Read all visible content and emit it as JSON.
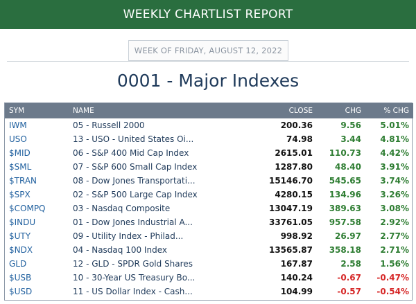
{
  "header": {
    "banner_title": "WEEKLY CHARTLIST REPORT",
    "week_label": "WEEK OF FRIDAY, AUGUST 12, 2022"
  },
  "list": {
    "title": "0001 - Major Indexes"
  },
  "table": {
    "columns": {
      "sym": "SYM",
      "name": "NAME",
      "close": "CLOSE",
      "chg": "CHG",
      "pct": "% CHG"
    },
    "rows": [
      {
        "sym": "IWM",
        "name": "05 - Russell 2000",
        "close": "200.36",
        "chg": "9.56",
        "pct": "5.01%",
        "dir": "pos"
      },
      {
        "sym": "USO",
        "name": "13 - USO - United States Oi...",
        "close": "74.98",
        "chg": "3.44",
        "pct": "4.81%",
        "dir": "pos"
      },
      {
        "sym": "$MID",
        "name": "06 - S&P 400 Mid Cap Index",
        "close": "2615.01",
        "chg": "110.73",
        "pct": "4.42%",
        "dir": "pos"
      },
      {
        "sym": "$SML",
        "name": "07 - S&P 600 Small Cap Index",
        "close": "1287.80",
        "chg": "48.40",
        "pct": "3.91%",
        "dir": "pos"
      },
      {
        "sym": "$TRAN",
        "name": "08 - Dow Jones Transportati...",
        "close": "15146.70",
        "chg": "545.65",
        "pct": "3.74%",
        "dir": "pos"
      },
      {
        "sym": "$SPX",
        "name": "02 - S&P 500 Large Cap Index",
        "close": "4280.15",
        "chg": "134.96",
        "pct": "3.26%",
        "dir": "pos"
      },
      {
        "sym": "$COMPQ",
        "name": "03 - Nasdaq Composite",
        "close": "13047.19",
        "chg": "389.63",
        "pct": "3.08%",
        "dir": "pos"
      },
      {
        "sym": "$INDU",
        "name": "01 - Dow Jones Industrial A...",
        "close": "33761.05",
        "chg": "957.58",
        "pct": "2.92%",
        "dir": "pos"
      },
      {
        "sym": "$UTY",
        "name": "09 - Utility Index - Philad...",
        "close": "998.92",
        "chg": "26.97",
        "pct": "2.77%",
        "dir": "pos"
      },
      {
        "sym": "$NDX",
        "name": "04 - Nasdaq 100 Index",
        "close": "13565.87",
        "chg": "358.18",
        "pct": "2.71%",
        "dir": "pos"
      },
      {
        "sym": "GLD",
        "name": "12 - GLD - SPDR Gold Shares",
        "close": "167.87",
        "chg": "2.58",
        "pct": "1.56%",
        "dir": "pos"
      },
      {
        "sym": "$USB",
        "name": "10 - 30-Year US Treasury Bo...",
        "close": "140.24",
        "chg": "-0.67",
        "pct": "-0.47%",
        "dir": "neg"
      },
      {
        "sym": "$USD",
        "name": "11 - US Dollar Index - Cash...",
        "close": "104.99",
        "chg": "-0.57",
        "pct": "-0.54%",
        "dir": "neg"
      }
    ]
  },
  "colors": {
    "banner": "#2a6e3f",
    "header_row": "#6c7a8b",
    "positive": "#2e7d32",
    "negative": "#d62828",
    "symbol_link": "#1f5f9e"
  }
}
